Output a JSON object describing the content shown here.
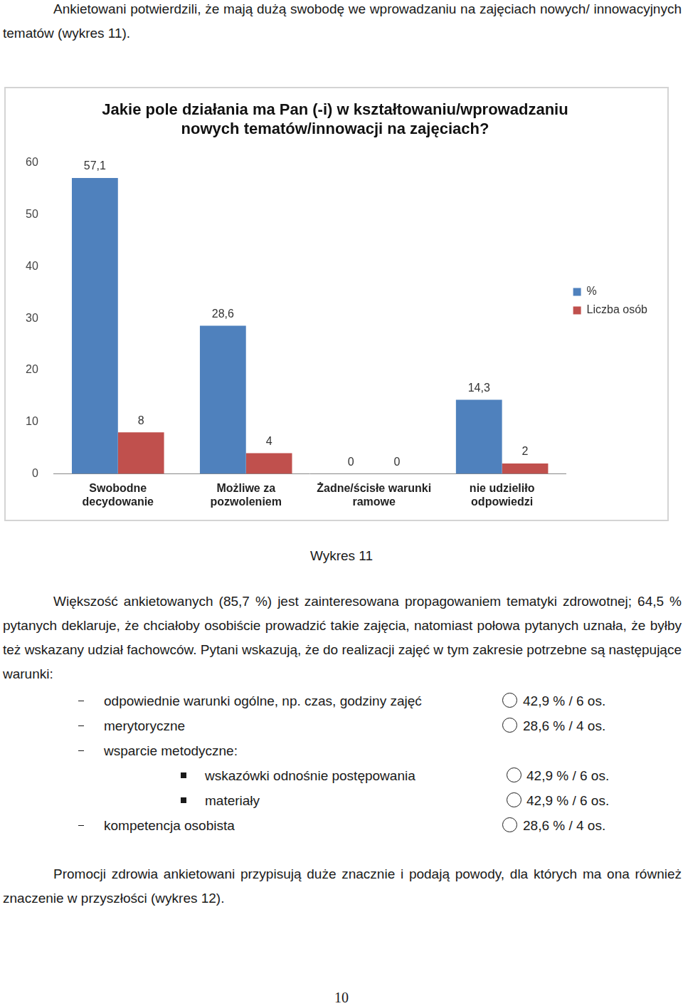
{
  "intro": "Ankietowani potwierdzili, że mają dużą swobodę we wprowadzaniu na zajęciach nowych/ innowacyjnych tematów (wykres 11).",
  "chart_data": {
    "type": "bar",
    "title": [
      "Jakie pole działania ma Pan (-i) w kształtowaniu/wprowadzaniu",
      "nowych tematów/innowacji na zajęciach?"
    ],
    "categories": [
      [
        "Swobodne",
        "decydowanie"
      ],
      [
        "Możliwe za",
        "pozwoleniem"
      ],
      [
        "Żadne/ścisłe warunki",
        "ramowe"
      ],
      [
        "nie udzieliło",
        "odpowiedzi"
      ]
    ],
    "series": [
      {
        "name": "%",
        "color": "#4f81bd",
        "values": [
          57.1,
          28.6,
          0,
          14.3
        ],
        "value_labels": [
          "57,1",
          "28,6",
          "0",
          "14,3"
        ]
      },
      {
        "name": "Liczba osób",
        "color": "#c0504d",
        "values": [
          8,
          4,
          0,
          2
        ]
      }
    ],
    "ylim": [
      0,
      60
    ],
    "yticks": [
      0,
      10,
      20,
      30,
      40,
      50,
      60
    ],
    "grid": false,
    "legend": "right",
    "data_labels": true
  },
  "caption": "Wykres 11",
  "paragraph": "Większość ankietowanych (85,7 %) jest zainteresowana propagowaniem tematyki zdrowotnej; 64,5 % pytanych deklaruje, że chciałoby osobiście prowadzić takie zajęcia, natomiast połowa pytanych uznała, że byłby też wskazany udział fachowców. Pytani wskazują, że do realizacji zajęć w tym zakresie potrzebne są następujące warunki:",
  "conditions": [
    {
      "text": "odpowiednie warunki ogólne, np. czas, godziny zajęć",
      "result": "42,9 % / 6 os."
    },
    {
      "text": "merytoryczne",
      "result": "28,6 % / 4 os."
    },
    {
      "text": "wsparcie metodyczne:",
      "items": [
        {
          "text": "wskazówki odnośnie postępowania",
          "result": "42,9 % / 6 os."
        },
        {
          "text": "materiały",
          "result": "42,9 % / 6 os."
        }
      ]
    },
    {
      "text": "kompetencja osobista",
      "result": "28,6 % / 4 os."
    }
  ],
  "closing": "Promocji zdrowia ankietowani przypisują duże znacznie i podają powody, dla których ma ona również znaczenie w przyszłości (wykres 12).",
  "page_number": "10"
}
